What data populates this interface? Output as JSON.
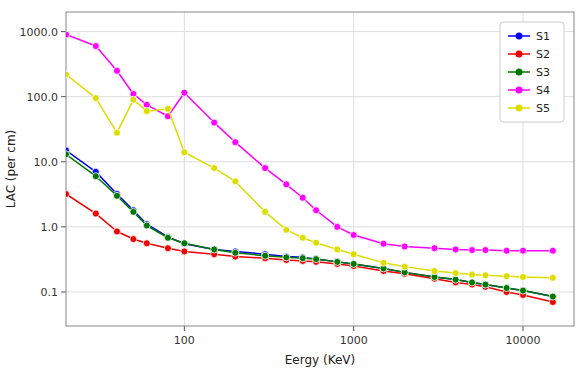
{
  "chart_data": {
    "type": "line",
    "xlabel": "Eergy (KeV)",
    "ylabel": "LAC (per cm)",
    "x": [
      20,
      30,
      40,
      50,
      60,
      80,
      100,
      150,
      200,
      300,
      400,
      500,
      600,
      800,
      1000,
      1500,
      2000,
      3000,
      4000,
      5000,
      6000,
      8000,
      10000,
      15000
    ],
    "series": [
      {
        "name": "S1",
        "color": "#0000ee",
        "values": [
          15.0,
          7.0,
          3.2,
          1.8,
          1.1,
          0.7,
          0.55,
          0.45,
          0.42,
          0.38,
          0.35,
          0.34,
          0.32,
          0.29,
          0.27,
          0.23,
          0.2,
          0.17,
          0.155,
          0.14,
          0.13,
          0.115,
          0.105,
          0.085
        ]
      },
      {
        "name": "S2",
        "color": "#ee0000",
        "values": [
          3.2,
          1.6,
          0.85,
          0.65,
          0.56,
          0.47,
          0.42,
          0.38,
          0.35,
          0.33,
          0.31,
          0.3,
          0.29,
          0.27,
          0.25,
          0.21,
          0.19,
          0.16,
          0.14,
          0.13,
          0.12,
          0.1,
          0.09,
          0.07
        ]
      },
      {
        "name": "S3",
        "color": "#007700",
        "values": [
          13.0,
          6.0,
          3.0,
          1.7,
          1.05,
          0.68,
          0.56,
          0.45,
          0.4,
          0.36,
          0.34,
          0.33,
          0.32,
          0.29,
          0.27,
          0.23,
          0.2,
          0.17,
          0.155,
          0.14,
          0.13,
          0.115,
          0.105,
          0.085
        ]
      },
      {
        "name": "S4",
        "color": "#ff00ff",
        "values": [
          900.0,
          600.0,
          250.0,
          110.0,
          75.0,
          50.0,
          115.0,
          40.0,
          20.0,
          8.0,
          4.5,
          2.8,
          1.8,
          1.0,
          0.75,
          0.55,
          0.5,
          0.47,
          0.45,
          0.44,
          0.44,
          0.43,
          0.43,
          0.43
        ]
      },
      {
        "name": "S5",
        "color": "#dddd00",
        "values": [
          220.0,
          95.0,
          28.0,
          90.0,
          60.0,
          65.0,
          14.0,
          8.0,
          5.0,
          1.7,
          0.9,
          0.68,
          0.57,
          0.45,
          0.38,
          0.28,
          0.245,
          0.21,
          0.195,
          0.185,
          0.18,
          0.175,
          0.17,
          0.165
        ]
      }
    ],
    "xlim": [
      20,
      20000
    ],
    "ylim": [
      0.03,
      2000
    ],
    "xticks": [
      100,
      1000,
      10000
    ],
    "yticks": [
      0.1,
      {
        "value": 1.0,
        "label": "1.0"
      },
      {
        "value": 10.0,
        "label": "10.0"
      },
      {
        "value": 100.0,
        "label": "100.0"
      },
      {
        "value": 1000.0,
        "label": "1000.0"
      }
    ],
    "log": true,
    "grid": true,
    "legend": "upper right",
    "marker": "circle"
  }
}
